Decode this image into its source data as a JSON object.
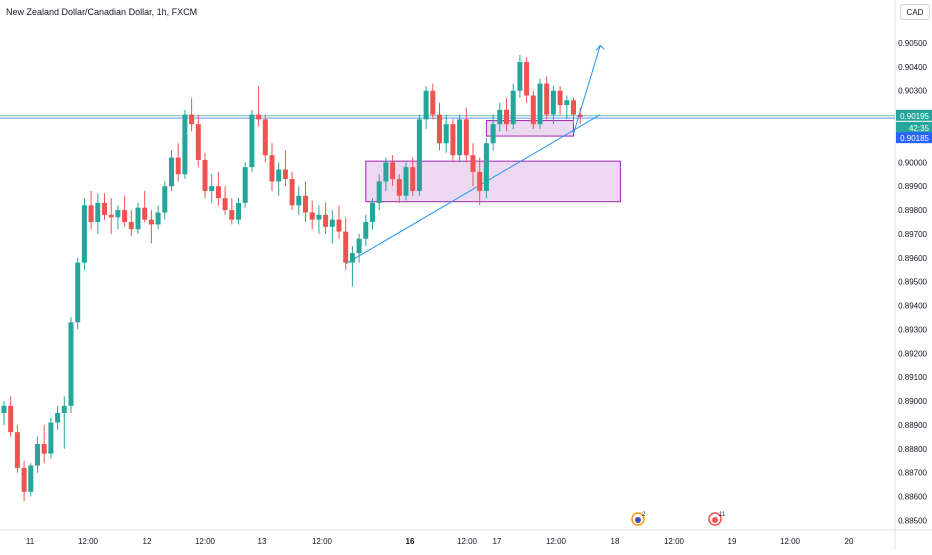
{
  "title": "New Zealand Dollar/Canadian Dollar, 1h, FXCM",
  "currency_badge": "CAD",
  "price_tags": [
    {
      "label": "0.90195",
      "color": "#26a69a"
    },
    {
      "label": "42:35",
      "color": "#26a69a"
    },
    {
      "label": "0.90185",
      "color": "#2962ff"
    }
  ],
  "event_icons": [
    {
      "name": "earnings-icon",
      "count": "2"
    },
    {
      "name": "dividend-icon",
      "count": "11"
    }
  ],
  "colors": {
    "up": "#26a69a",
    "down": "#ef5350",
    "zone_fill": "#e1bee7",
    "zone_stroke": "#9c27b0",
    "trend": "#2196f3"
  },
  "chart_data": {
    "type": "candlestick",
    "title": "New Zealand Dollar/Canadian Dollar, 1h, FXCM",
    "ylim": [
      0.8846,
      0.9068
    ],
    "y_ticks": [
      "0.90500",
      "0.90400",
      "0.90300",
      "0.90195",
      "0.90185",
      "0.90000",
      "0.89900",
      "0.89800",
      "0.89700",
      "0.89600",
      "0.89500",
      "0.89400",
      "0.89300",
      "0.89200",
      "0.89100",
      "0.89000",
      "0.88900",
      "0.88800",
      "0.88700",
      "0.88600",
      "0.88500"
    ],
    "x_ticks": [
      "11",
      "12:00",
      "12",
      "12:00",
      "13",
      "12:00",
      "16",
      "12:00",
      "17",
      "12:00",
      "18",
      "12:00",
      "19",
      "12:00",
      "20"
    ],
    "grid": false,
    "price_lines": [
      0.90195,
      0.90185
    ],
    "candles_note": "hourly OHLC, values in price units",
    "candles": [
      [
        0.8895,
        0.89,
        0.889,
        0.8898
      ],
      [
        0.8898,
        0.8902,
        0.8885,
        0.8887
      ],
      [
        0.8887,
        0.889,
        0.887,
        0.8872
      ],
      [
        0.8872,
        0.8875,
        0.8858,
        0.8862
      ],
      [
        0.8862,
        0.8874,
        0.886,
        0.8873
      ],
      [
        0.8873,
        0.8885,
        0.887,
        0.8882
      ],
      [
        0.8882,
        0.889,
        0.8874,
        0.8878
      ],
      [
        0.8878,
        0.8893,
        0.8876,
        0.8891
      ],
      [
        0.8891,
        0.8898,
        0.8888,
        0.8895
      ],
      [
        0.8895,
        0.8902,
        0.888,
        0.8898
      ],
      [
        0.8898,
        0.8935,
        0.8895,
        0.8933
      ],
      [
        0.8933,
        0.896,
        0.893,
        0.8958
      ],
      [
        0.8958,
        0.8985,
        0.8955,
        0.8982
      ],
      [
        0.8982,
        0.8988,
        0.8972,
        0.8975
      ],
      [
        0.8975,
        0.8987,
        0.897,
        0.8983
      ],
      [
        0.8983,
        0.8987,
        0.8976,
        0.8978
      ],
      [
        0.8978,
        0.8985,
        0.897,
        0.8977
      ],
      [
        0.8977,
        0.8982,
        0.8972,
        0.898
      ],
      [
        0.898,
        0.8986,
        0.8973,
        0.8975
      ],
      [
        0.8975,
        0.898,
        0.8969,
        0.8972
      ],
      [
        0.8972,
        0.8983,
        0.897,
        0.8981
      ],
      [
        0.8981,
        0.8988,
        0.8975,
        0.8976
      ],
      [
        0.8976,
        0.898,
        0.8966,
        0.8974
      ],
      [
        0.8974,
        0.8982,
        0.8972,
        0.8979
      ],
      [
        0.8979,
        0.8992,
        0.8976,
        0.899
      ],
      [
        0.899,
        0.9005,
        0.8988,
        0.9002
      ],
      [
        0.9002,
        0.9008,
        0.8992,
        0.8995
      ],
      [
        0.8995,
        0.9022,
        0.8993,
        0.902
      ],
      [
        0.902,
        0.9027,
        0.9013,
        0.9016
      ],
      [
        0.9016,
        0.902,
        0.8998,
        0.9001
      ],
      [
        0.9001,
        0.9004,
        0.8985,
        0.8988
      ],
      [
        0.8988,
        0.8995,
        0.8983,
        0.899
      ],
      [
        0.899,
        0.8996,
        0.8982,
        0.8985
      ],
      [
        0.8985,
        0.899,
        0.8978,
        0.898
      ],
      [
        0.898,
        0.8985,
        0.8974,
        0.8976
      ],
      [
        0.8976,
        0.8985,
        0.8974,
        0.8983
      ],
      [
        0.8983,
        0.9,
        0.8981,
        0.8998
      ],
      [
        0.8998,
        0.9022,
        0.8996,
        0.902
      ],
      [
        0.902,
        0.9032,
        0.9015,
        0.9018
      ],
      [
        0.9018,
        0.902,
        0.9,
        0.9003
      ],
      [
        0.9003,
        0.9008,
        0.8988,
        0.8992
      ],
      [
        0.8992,
        0.9,
        0.8986,
        0.8997
      ],
      [
        0.8997,
        0.9005,
        0.899,
        0.8993
      ],
      [
        0.8993,
        0.8996,
        0.898,
        0.8982
      ],
      [
        0.8982,
        0.899,
        0.8978,
        0.8986
      ],
      [
        0.8986,
        0.8992,
        0.8975,
        0.8979
      ],
      [
        0.8979,
        0.8984,
        0.8972,
        0.8976
      ],
      [
        0.8976,
        0.8982,
        0.897,
        0.8978
      ],
      [
        0.8978,
        0.8983,
        0.897,
        0.8973
      ],
      [
        0.8973,
        0.898,
        0.8966,
        0.8976
      ],
      [
        0.8976,
        0.8982,
        0.8968,
        0.8971
      ],
      [
        0.8971,
        0.8977,
        0.8955,
        0.8958
      ],
      [
        0.8958,
        0.8965,
        0.8948,
        0.8962
      ],
      [
        0.8962,
        0.897,
        0.8958,
        0.8968
      ],
      [
        0.8968,
        0.8978,
        0.8965,
        0.8975
      ],
      [
        0.8975,
        0.8985,
        0.8972,
        0.8983
      ],
      [
        0.8983,
        0.8995,
        0.898,
        0.8992
      ],
      [
        0.8992,
        0.9002,
        0.8988,
        0.9
      ],
      [
        0.9,
        0.9003,
        0.899,
        0.8993
      ],
      [
        0.8993,
        0.8995,
        0.8983,
        0.8986
      ],
      [
        0.8986,
        0.9,
        0.8984,
        0.8998
      ],
      [
        0.8998,
        0.9002,
        0.8986,
        0.8988
      ],
      [
        0.8988,
        0.902,
        0.8986,
        0.9018
      ],
      [
        0.9018,
        0.9032,
        0.9014,
        0.903
      ],
      [
        0.903,
        0.9033,
        0.9018,
        0.902
      ],
      [
        0.902,
        0.9025,
        0.9005,
        0.9008
      ],
      [
        0.9008,
        0.902,
        0.9004,
        0.9016
      ],
      [
        0.9016,
        0.9018,
        0.9,
        0.9003
      ],
      [
        0.9003,
        0.902,
        0.9,
        0.9018
      ],
      [
        0.9018,
        0.9023,
        0.9,
        0.9003
      ],
      [
        0.9003,
        0.9008,
        0.899,
        0.8996
      ],
      [
        0.8996,
        0.9002,
        0.8982,
        0.8988
      ],
      [
        0.8988,
        0.901,
        0.8985,
        0.9008
      ],
      [
        0.9008,
        0.902,
        0.9005,
        0.9016
      ],
      [
        0.9016,
        0.9025,
        0.9013,
        0.9022
      ],
      [
        0.9022,
        0.9027,
        0.9013,
        0.9016
      ],
      [
        0.9016,
        0.9033,
        0.9014,
        0.903
      ],
      [
        0.903,
        0.9045,
        0.9027,
        0.9042
      ],
      [
        0.9042,
        0.9044,
        0.9025,
        0.9028
      ],
      [
        0.9028,
        0.903,
        0.9014,
        0.9016
      ],
      [
        0.9016,
        0.9035,
        0.9014,
        0.9033
      ],
      [
        0.9033,
        0.9036,
        0.9018,
        0.902
      ],
      [
        0.902,
        0.9032,
        0.9016,
        0.903
      ],
      [
        0.903,
        0.9032,
        0.902,
        0.9024
      ],
      [
        0.9024,
        0.9028,
        0.9018,
        0.9026
      ],
      [
        0.9026,
        0.9027,
        0.9016,
        0.902
      ],
      [
        0.902,
        0.9023,
        0.9016,
        0.9019
      ]
    ]
  },
  "drawings": {
    "zones": [
      {
        "name": "demand-zone-large",
        "x_from": 54,
        "x_to": 92,
        "y_top": 0.90005,
        "y_bottom": 0.89835
      },
      {
        "name": "demand-zone-small",
        "x_from": 72,
        "x_to": 85,
        "y_top": 0.90175,
        "y_bottom": 0.9011
      }
    ],
    "trendline": {
      "x_from": 51,
      "x_to": 89,
      "y_from": 0.89575,
      "y_to": 0.902
    },
    "projection_arrow": {
      "points": [
        [
          85,
          0.9012
        ],
        [
          89,
          0.9049
        ]
      ]
    }
  }
}
